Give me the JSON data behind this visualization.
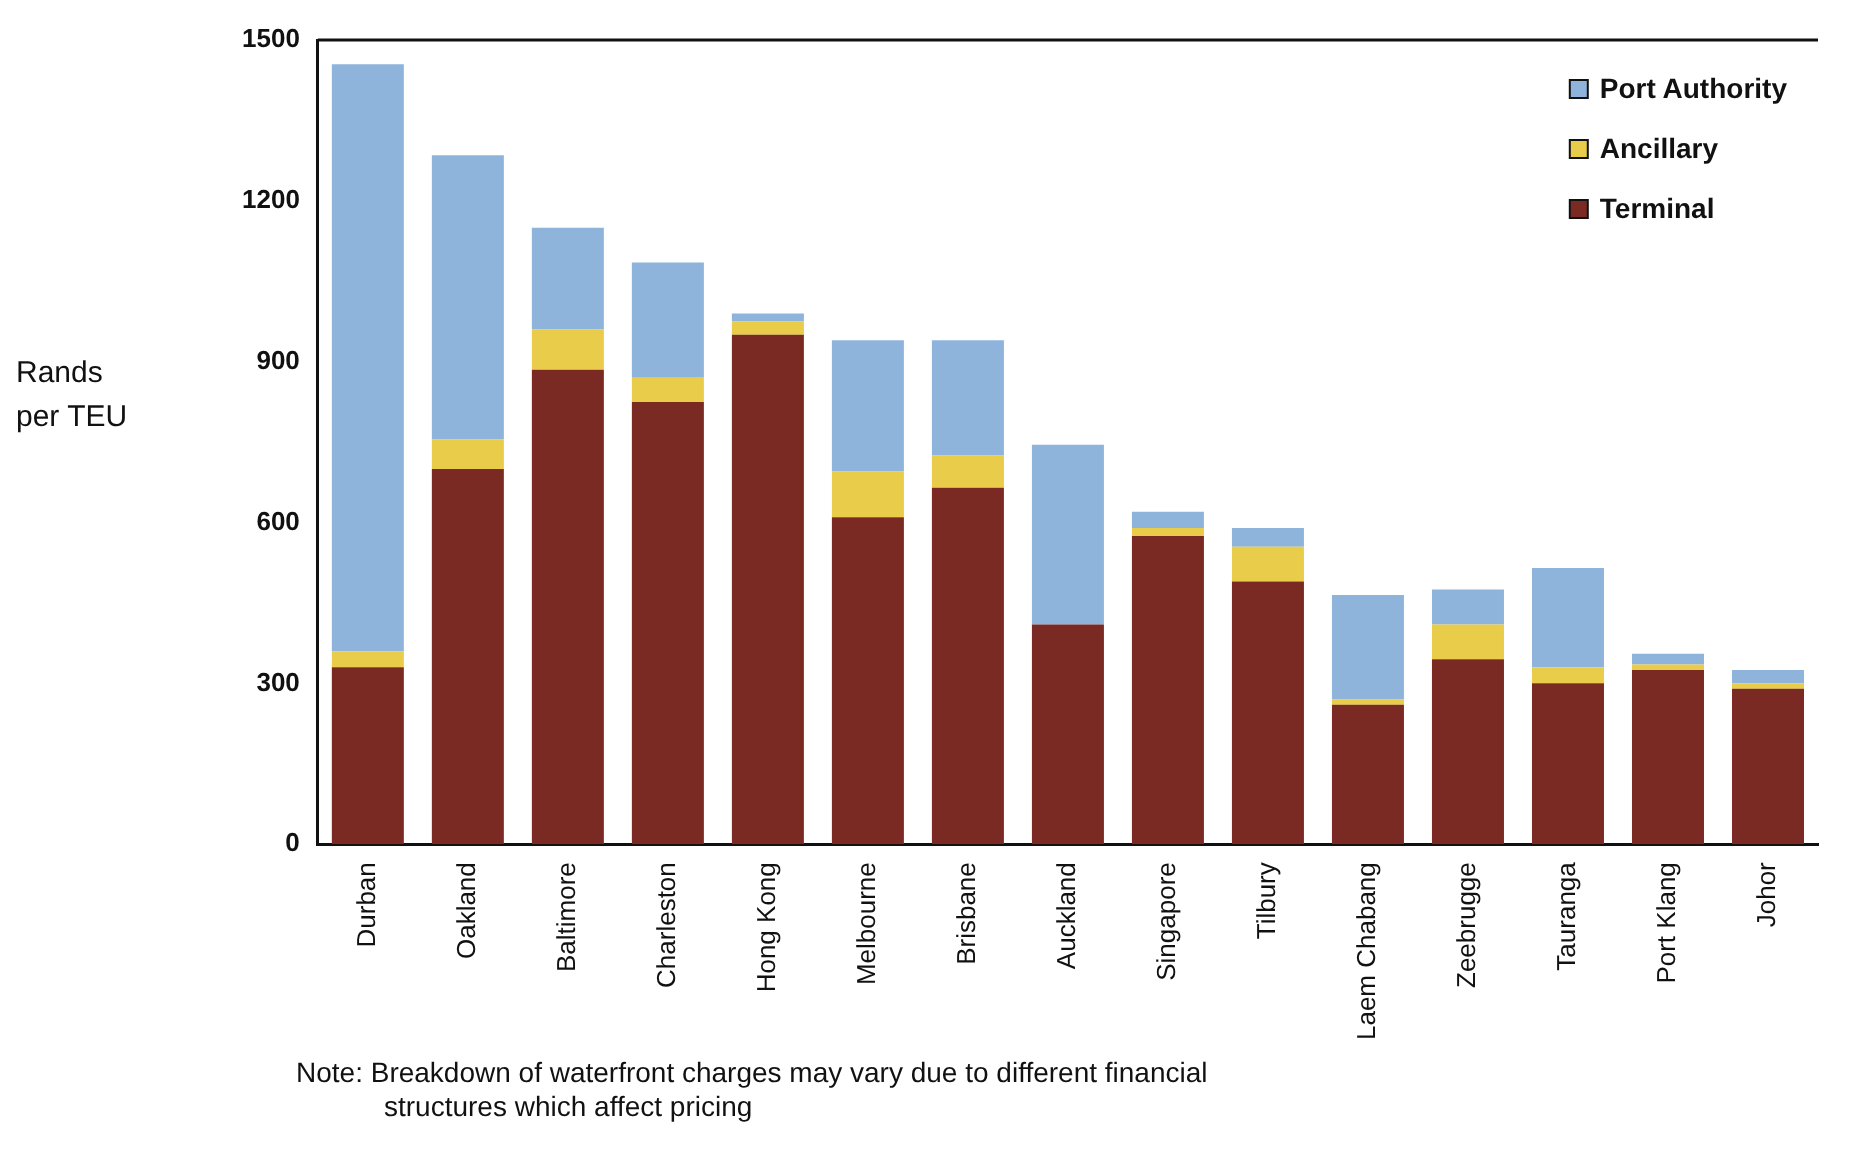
{
  "chart_data": {
    "type": "bar",
    "stacked": true,
    "ylabel": "Rands per TEU",
    "categories": [
      "Durban",
      "Oakland",
      "Baltimore",
      "Charleston",
      "Hong Kong",
      "Melbourne",
      "Brisbane",
      "Auckland",
      "Singapore",
      "Tilbury",
      "Laem Chabang",
      "Zeebrugge",
      "Tauranga",
      "Port Klang",
      "Johor"
    ],
    "series": [
      {
        "name": "Terminal",
        "color": "#7a2a22",
        "values": [
          330,
          700,
          885,
          825,
          950,
          610,
          665,
          410,
          575,
          490,
          260,
          345,
          300,
          325,
          290
        ]
      },
      {
        "name": "Ancillary",
        "color": "#e8cc4a",
        "values": [
          30,
          55,
          75,
          45,
          25,
          85,
          60,
          0,
          15,
          65,
          10,
          65,
          30,
          10,
          10
        ]
      },
      {
        "name": "Port Authority",
        "color": "#8fb4dc",
        "values": [
          1095,
          530,
          190,
          215,
          15,
          245,
          215,
          335,
          30,
          35,
          195,
          65,
          185,
          20,
          25
        ]
      }
    ],
    "ylim": [
      0,
      1500
    ],
    "yticks": [
      0,
      300,
      600,
      900,
      1200,
      1500
    ],
    "grid": false,
    "legend": "top right",
    "annotations": [
      "Note:  Breakdown of waterfront charges may vary due to different financial structures which affect pricing"
    ]
  }
}
